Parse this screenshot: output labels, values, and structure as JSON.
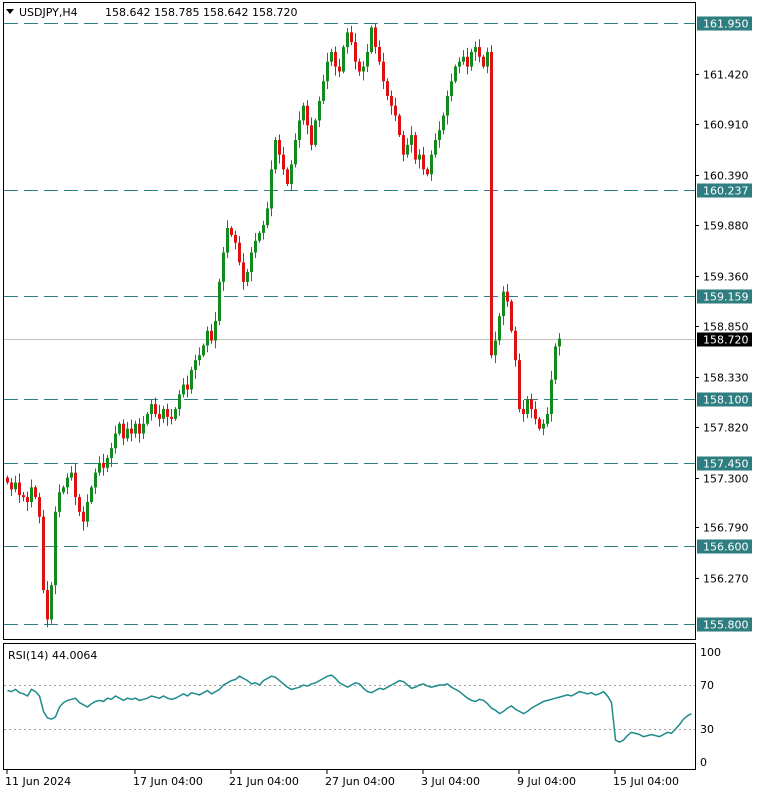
{
  "header": {
    "symbol": "USDJPY,H4",
    "ohlc": "158.642 158.785 158.642 158.720"
  },
  "rsi": {
    "label": "RSI(14) 44.0064",
    "period": 14,
    "value": 44.0064,
    "levels": [
      70,
      30
    ],
    "ticks": [
      "100",
      "70",
      "30",
      "0"
    ],
    "series": [
      65,
      64,
      66,
      63,
      62,
      60,
      66,
      64,
      60,
      46,
      40,
      39,
      41,
      50,
      54,
      56,
      57,
      58,
      54,
      52,
      50,
      53,
      55,
      56,
      55,
      58,
      57,
      60,
      58,
      56,
      58,
      57,
      58,
      56,
      57,
      58,
      60,
      59,
      58,
      60,
      58,
      57,
      58,
      60,
      62,
      60,
      63,
      62,
      61,
      63,
      65,
      62,
      64,
      66,
      70,
      72,
      74,
      75,
      78,
      76,
      74,
      71,
      72,
      70,
      74,
      76,
      78,
      77,
      74,
      71,
      68,
      66,
      67,
      68,
      70,
      69,
      71,
      72,
      74,
      76,
      78,
      79,
      76,
      72,
      70,
      68,
      70,
      72,
      71,
      67,
      64,
      63,
      65,
      67,
      66,
      68,
      70,
      72,
      74,
      73,
      70,
      67,
      68,
      70,
      71,
      69,
      68,
      69,
      70,
      70,
      71,
      68,
      66,
      64,
      61,
      58,
      56,
      55,
      57,
      56,
      53,
      49,
      47,
      44,
      46,
      49,
      51,
      48,
      46,
      44,
      46,
      49,
      51,
      53,
      55,
      56,
      57,
      58,
      59,
      60,
      61,
      60,
      62,
      64,
      63,
      62,
      63,
      61,
      62,
      64,
      60,
      54,
      20,
      18,
      20,
      24,
      27,
      26,
      25,
      23,
      24,
      25,
      24,
      23,
      25,
      27,
      26,
      30,
      34,
      39,
      42,
      44
    ]
  },
  "chart_data": {
    "type": "candlestick",
    "symbol": "USDJPY",
    "timeframe": "H4",
    "current_price": 158.72,
    "ylim": [
      155.65,
      162.15
    ],
    "y_ticks": [
      "161.420",
      "160.910",
      "160.390",
      "159.880",
      "159.360",
      "158.850",
      "158.330",
      "157.820",
      "157.300",
      "156.790",
      "156.270"
    ],
    "x_ticks": [
      "11 Jun 2024",
      "17 Jun 04:00",
      "21 Jun 04:00",
      "27 Jun 04:00",
      "3 Jul 04:00",
      "9 Jul 04:00",
      "15 Jul 04:00"
    ],
    "x_tick_bars": [
      0,
      32,
      56,
      80,
      104,
      128,
      152
    ],
    "horizontal_levels": [
      161.95,
      160.237,
      159.159,
      158.1,
      157.45,
      156.6,
      155.8
    ],
    "horizontal_level_labels": [
      "161.950",
      "160.237",
      "159.159",
      "158.100",
      "157.450",
      "156.600",
      "155.800"
    ],
    "current_price_label": "158.720",
    "close_path": [
      157.25,
      157.18,
      157.25,
      157.12,
      157.1,
      157.05,
      157.2,
      157.1,
      156.9,
      156.15,
      155.85,
      156.2,
      156.95,
      157.15,
      157.2,
      157.3,
      157.35,
      157.1,
      156.95,
      156.85,
      157.05,
      157.2,
      157.35,
      157.45,
      157.4,
      157.5,
      157.6,
      157.75,
      157.85,
      157.7,
      157.8,
      157.75,
      157.85,
      157.75,
      157.85,
      157.95,
      158.05,
      157.95,
      157.9,
      158.0,
      157.92,
      157.9,
      158.0,
      158.15,
      158.25,
      158.2,
      158.4,
      158.5,
      158.55,
      158.65,
      158.8,
      158.7,
      158.9,
      159.3,
      159.6,
      159.85,
      159.78,
      159.7,
      159.5,
      159.3,
      159.4,
      159.6,
      159.72,
      159.8,
      159.88,
      160.05,
      160.45,
      160.75,
      160.6,
      160.45,
      160.3,
      160.5,
      160.75,
      160.95,
      161.1,
      160.9,
      160.7,
      160.95,
      161.15,
      161.35,
      161.55,
      161.65,
      161.5,
      161.45,
      161.7,
      161.85,
      161.75,
      161.55,
      161.45,
      161.5,
      161.65,
      161.9,
      161.7,
      161.55,
      161.35,
      161.2,
      161.1,
      161.0,
      160.8,
      160.6,
      160.7,
      160.8,
      160.55,
      160.6,
      160.45,
      160.4,
      160.6,
      160.75,
      160.85,
      161.0,
      161.2,
      161.35,
      161.5,
      161.55,
      161.6,
      161.5,
      161.65,
      161.7,
      161.6,
      161.5,
      161.65,
      158.55,
      158.7,
      158.95,
      159.2,
      159.1,
      158.8,
      158.5,
      158.0,
      157.95,
      158.1,
      158.0,
      157.9,
      157.8,
      157.85,
      157.95,
      158.3,
      158.64,
      158.72
    ]
  }
}
